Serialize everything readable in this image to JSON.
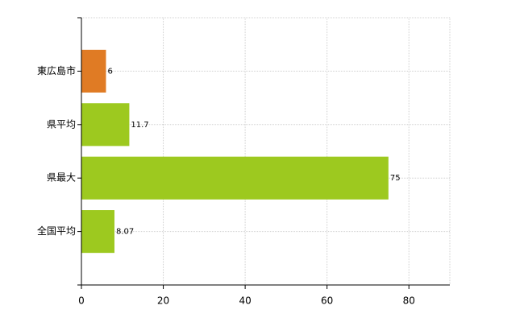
{
  "chart_data": {
    "type": "bar",
    "orientation": "horizontal",
    "categories": [
      "東広島市",
      "県平均",
      "県最大",
      "全国平均"
    ],
    "values": [
      6,
      11.7,
      75,
      8.07
    ],
    "colors": [
      "#e07b24",
      "#9dc91f",
      "#9dc91f",
      "#9dc91f"
    ],
    "xlim": [
      0,
      90
    ],
    "xticks": [
      0,
      20,
      40,
      60,
      80
    ],
    "grid": true
  }
}
